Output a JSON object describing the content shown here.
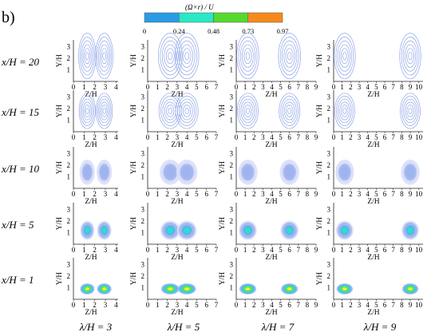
{
  "figure": {
    "panel_label": "b)",
    "colorbar": {
      "title": "(Ω×r) / U",
      "ticks": [
        "0",
        "0.24",
        "0.48",
        "0.73",
        "0.97"
      ],
      "colors": [
        "#2b9be6",
        "#2ae8c5",
        "#56d92f",
        "#f58a1c"
      ]
    },
    "row_labels": [
      "x/H = 20",
      "x/H = 15",
      "x/H = 10",
      "x/H = 5",
      "x/H = 1"
    ],
    "col_labels": [
      "λ/H = 3",
      "λ/H = 5",
      "λ/H = 7",
      "λ/H = 9"
    ],
    "xlabel": "Z/H",
    "ylabel": "Y/H"
  },
  "chart_data": {
    "type": "contour",
    "colorbar_range": [
      0,
      0.97
    ],
    "rows_x_over_H": [
      20,
      15,
      10,
      5,
      1
    ],
    "cols_lambda_over_H": [
      3,
      5,
      7,
      9
    ],
    "columns": [
      {
        "lambda_over_H": 3,
        "z_ticks": [
          "0",
          "1",
          "2",
          "3",
          "4"
        ],
        "xlim": [
          0,
          4.2
        ],
        "vortex_centers_Z": [
          1.3,
          2.9
        ]
      },
      {
        "lambda_over_H": 5,
        "z_ticks": [
          "0",
          "1",
          "2",
          "3",
          "4",
          "5",
          "6",
          "7"
        ],
        "xlim": [
          0,
          7
        ],
        "vortex_centers_Z": [
          2.3,
          4.0
        ]
      },
      {
        "lambda_over_H": 7,
        "z_ticks": [
          "0",
          "1",
          "2",
          "3",
          "4",
          "5",
          "6",
          "7",
          "8",
          "9"
        ],
        "xlim": [
          0,
          9
        ],
        "vortex_centers_Z": [
          1.3,
          6.0
        ]
      },
      {
        "lambda_over_H": 9,
        "z_ticks": [
          "0",
          "1",
          "2",
          "3",
          "4",
          "5",
          "6",
          "7",
          "8",
          "9",
          "10"
        ],
        "xlim": [
          0,
          10.5
        ],
        "vortex_centers_Z": [
          1.3,
          9.0
        ]
      }
    ],
    "y_ticks": [
      "1",
      "2",
      "3"
    ],
    "rows": [
      {
        "x_over_H": 20,
        "vortex_height_Y": 2.2,
        "peak_value": 0.05
      },
      {
        "x_over_H": 15,
        "vortex_height_Y": 1.8,
        "peak_value": 0.1
      },
      {
        "x_over_H": 10,
        "vortex_height_Y": 1.4,
        "peak_value": 0.25
      },
      {
        "x_over_H": 5,
        "vortex_height_Y": 1.2,
        "peak_value": 0.55
      },
      {
        "x_over_H": 1,
        "vortex_height_Y": 0.9,
        "peak_value": 0.97
      }
    ]
  }
}
